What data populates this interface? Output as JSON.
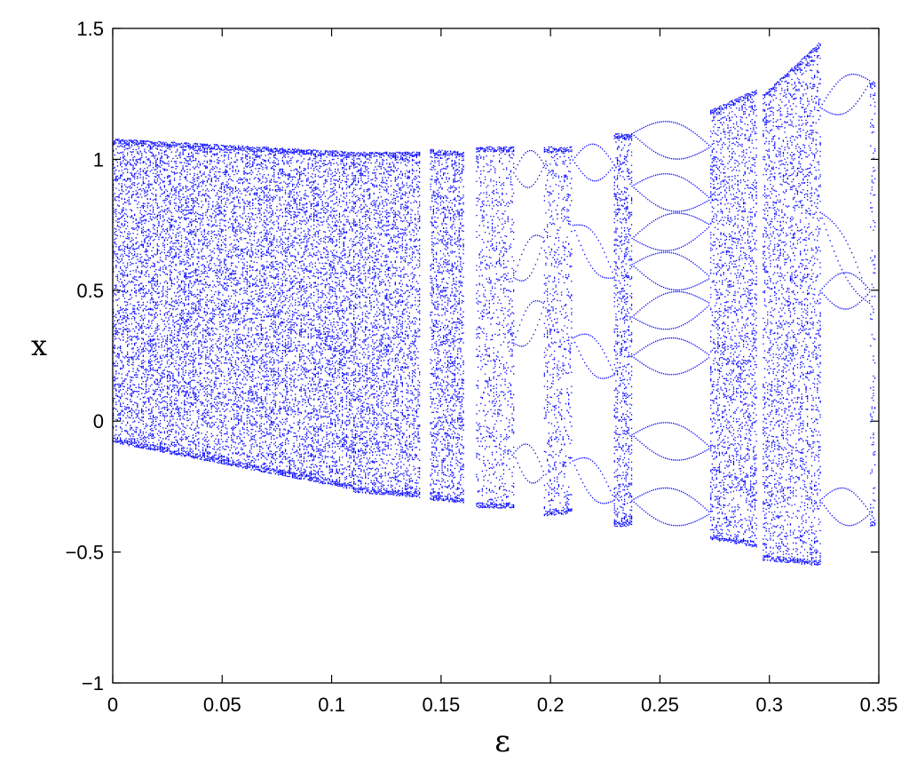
{
  "chart_data": {
    "type": "scatter",
    "title": "",
    "xlabel": "ε",
    "ylabel": "x",
    "xlim": [
      0,
      0.35
    ],
    "ylim": [
      -1,
      1.5
    ],
    "xticks": [
      "0",
      "0.05",
      "0.1",
      "0.15",
      "0.2",
      "0.25",
      "0.3",
      "0.35"
    ],
    "yticks": [
      "-1",
      "-0.5",
      "0",
      "0.5",
      "1",
      "1.5"
    ],
    "grid": false,
    "legend": "none",
    "marker_color": "#0000ff",
    "series": [
      {
        "description": "bifurcation diagram of x versus ε",
        "bands": [
          {
            "eps": [
              0.0,
              0.11
            ],
            "x_min_start": -0.08,
            "x_min_end": -0.26,
            "x_max_start": 1.08,
            "x_max_end": 1.03,
            "density": "dense"
          },
          {
            "eps": [
              0.11,
              0.14
            ],
            "x_min_start": -0.27,
            "x_min_end": -0.29,
            "x_max_start": 1.03,
            "x_max_end": 1.03,
            "density": "dense"
          },
          {
            "eps": [
              0.145,
              0.16
            ],
            "x_min_start": -0.3,
            "x_min_end": -0.31,
            "x_max_start": 1.04,
            "x_max_end": 1.03,
            "density": "dense"
          },
          {
            "eps": [
              0.166,
              0.183
            ],
            "x_min_start": -0.33,
            "x_min_end": -0.33,
            "x_max_start": 1.05,
            "x_max_end": 1.05,
            "density": "medium"
          },
          {
            "eps": [
              0.197,
              0.21
            ],
            "x_min_start": -0.36,
            "x_min_end": -0.35,
            "x_max_start": 1.05,
            "x_max_end": 1.05,
            "density": "medium"
          },
          {
            "eps": [
              0.229,
              0.237
            ],
            "x_min_start": -0.4,
            "x_min_end": -0.4,
            "x_max_start": 1.1,
            "x_max_end": 1.1,
            "density": "dense"
          },
          {
            "eps": [
              0.273,
              0.294
            ],
            "x_min_start": -0.45,
            "x_min_end": -0.48,
            "x_max_start": 1.19,
            "x_max_end": 1.27,
            "density": "dense"
          },
          {
            "eps": [
              0.297,
              0.323
            ],
            "x_min_start": -0.53,
            "x_min_end": -0.55,
            "x_max_start": 1.25,
            "x_max_end": 1.45,
            "density": "dense"
          },
          {
            "eps": [
              0.346,
              0.348
            ],
            "x_min_start": -0.4,
            "x_min_end": -0.4,
            "x_max_start": 1.3,
            "x_max_end": 1.3,
            "density": "medium"
          }
        ],
        "periodic_windows": [
          {
            "eps": [
              0.183,
              0.197
            ],
            "branches": [
              [
                0.95,
                0.98
              ],
              [
                0.55,
                0.7
              ],
              [
                0.3,
                0.45
              ],
              [
                -0.12,
                -0.2
              ]
            ]
          },
          {
            "eps": [
              0.21,
              0.229
            ],
            "branches": [
              [
                1.0,
                0.98
              ],
              [
                0.75,
                0.55
              ],
              [
                0.32,
                0.18
              ],
              [
                -0.15,
                -0.3
              ]
            ]
          },
          {
            "eps": [
              0.237,
              0.273
            ],
            "branches": [
              [
                1.1,
                1.05
              ],
              [
                0.9,
                0.85
              ],
              [
                0.7,
                0.75
              ],
              [
                0.6,
                0.55
              ],
              [
                0.4,
                0.45
              ],
              [
                0.25,
                0.25
              ],
              [
                -0.05,
                -0.1
              ],
              [
                -0.3,
                -0.35
              ]
            ]
          },
          {
            "eps": [
              0.323,
              0.346
            ],
            "branches": [
              [
                1.2,
                1.3
              ],
              [
                0.8,
                0.45
              ],
              [
                0.5,
                0.5
              ],
              [
                -0.3,
                -0.35
              ]
            ]
          }
        ]
      }
    ]
  }
}
